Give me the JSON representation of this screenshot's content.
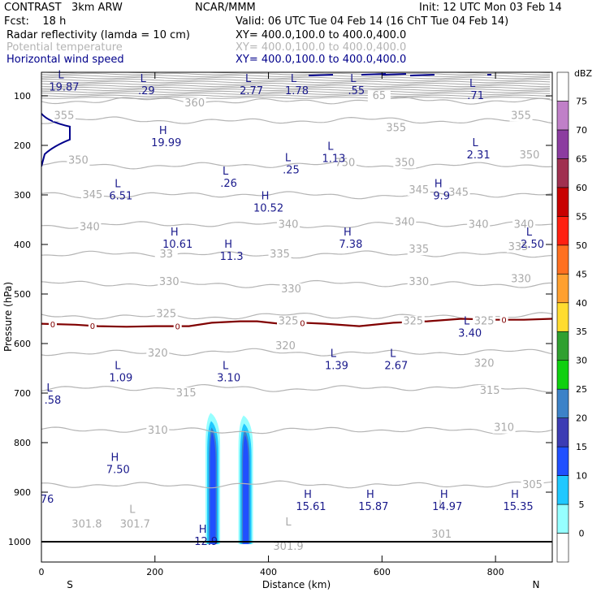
{
  "header": {
    "model": "CONTRAST   3km ARW",
    "center": "NCAR/MMM",
    "init": "Init: 12 UTC Mon 03 Feb 14",
    "fcst": "Fcst:    18 h",
    "valid": "Valid: 06 UTC Tue 04 Feb 14 (16 ChT Tue 04 Feb 14)",
    "fields": [
      {
        "name": "Radar reflectivity (lamda = 10 cm)",
        "xy": "XY= 400.0,100.0 to 400.0,400.0",
        "color": "#000000"
      },
      {
        "name": "Potential temperature",
        "xy": "XY= 400.0,100.0 to 400.0,400.0",
        "color": "#b4b4b4"
      },
      {
        "name": "Horizontal wind speed",
        "xy": "XY= 400.0,100.0 to 400.0,400.0",
        "color": "#00008b"
      }
    ]
  },
  "chart_data": {
    "type": "cross-section",
    "xlabel": "Distance (km)",
    "ylabel": "Pressure (hPa)",
    "xlim": [
      0,
      900
    ],
    "ylim_hpa": [
      1000,
      50
    ],
    "x_ticks": [
      0,
      200,
      400,
      600,
      800
    ],
    "y_ticks": [
      100,
      200,
      300,
      400,
      500,
      600,
      700,
      800,
      900,
      1000
    ],
    "end_labels": {
      "left": "S",
      "right": "N"
    },
    "theta_contours": [
      {
        "value": 360,
        "p": 110
      },
      {
        "value": 355,
        "p": 150
      },
      {
        "value": 350,
        "p": 240
      },
      {
        "value": 345,
        "p": 300
      },
      {
        "value": 340,
        "p": 360
      },
      {
        "value": 335,
        "p": 420
      },
      {
        "value": 330,
        "p": 480
      },
      {
        "value": 325,
        "p": 545
      },
      {
        "value": 320,
        "p": 618
      },
      {
        "value": 315,
        "p": 690
      },
      {
        "value": 310,
        "p": 775
      },
      {
        "value": 305,
        "p": 885
      }
    ],
    "theta_labels": [
      {
        "text": "360",
        "x": 270,
        "p": 115
      },
      {
        "text": "65",
        "x": 595,
        "p": 100
      },
      {
        "text": "355",
        "x": 40,
        "p": 140
      },
      {
        "text": "355",
        "x": 625,
        "p": 165
      },
      {
        "text": "355",
        "x": 845,
        "p": 140
      },
      {
        "text": "350",
        "x": 65,
        "p": 230
      },
      {
        "text": "750",
        "x": 535,
        "p": 235
      },
      {
        "text": "350",
        "x": 640,
        "p": 235
      },
      {
        "text": "350",
        "x": 860,
        "p": 220
      },
      {
        "text": "345",
        "x": 90,
        "p": 300
      },
      {
        "text": "345",
        "x": 665,
        "p": 290
      },
      {
        "text": "345",
        "x": 735,
        "p": 295
      },
      {
        "text": "340",
        "x": 85,
        "p": 365
      },
      {
        "text": "340",
        "x": 435,
        "p": 360
      },
      {
        "text": "340",
        "x": 640,
        "p": 355
      },
      {
        "text": "340",
        "x": 770,
        "p": 360
      },
      {
        "text": "340",
        "x": 850,
        "p": 360
      },
      {
        "text": "33",
        "x": 220,
        "p": 420
      },
      {
        "text": "335",
        "x": 420,
        "p": 420
      },
      {
        "text": "335",
        "x": 665,
        "p": 410
      },
      {
        "text": "335",
        "x": 840,
        "p": 405
      },
      {
        "text": "330",
        "x": 225,
        "p": 475
      },
      {
        "text": "330",
        "x": 440,
        "p": 490
      },
      {
        "text": "330",
        "x": 665,
        "p": 475
      },
      {
        "text": "330",
        "x": 845,
        "p": 470
      },
      {
        "text": "325",
        "x": 220,
        "p": 540
      },
      {
        "text": "325",
        "x": 435,
        "p": 555
      },
      {
        "text": "325",
        "x": 655,
        "p": 555
      },
      {
        "text": "325",
        "x": 780,
        "p": 555
      },
      {
        "text": "320",
        "x": 205,
        "p": 620
      },
      {
        "text": "320",
        "x": 430,
        "p": 605
      },
      {
        "text": "320",
        "x": 780,
        "p": 640
      },
      {
        "text": "315",
        "x": 255,
        "p": 700
      },
      {
        "text": "315",
        "x": 790,
        "p": 695
      },
      {
        "text": "310",
        "x": 205,
        "p": 775
      },
      {
        "text": "310",
        "x": 815,
        "p": 770
      },
      {
        "text": "305",
        "x": 865,
        "p": 885
      },
      {
        "text": "301.8",
        "x": 80,
        "p": 965
      },
      {
        "text": "301.7",
        "x": 165,
        "p": 965
      },
      {
        "text": "301.9",
        "x": 435,
        "p": 1010
      },
      {
        "text": "301",
        "x": 705,
        "p": 985
      }
    ],
    "theta_L": [
      {
        "x": 160,
        "p": 965
      },
      {
        "x": 435,
        "p": 990
      },
      {
        "x": 705,
        "p": 955
      }
    ],
    "wind_extrema": [
      {
        "kind": "L",
        "value": "19.87",
        "x": 40,
        "p": 68
      },
      {
        "kind": "L",
        "value": ".29",
        "x": 185,
        "p": 75
      },
      {
        "kind": "L",
        "value": "2.77",
        "x": 370,
        "p": 75
      },
      {
        "kind": "L",
        "value": "1.78",
        "x": 450,
        "p": 75
      },
      {
        "kind": "L",
        "value": ".55",
        "x": 555,
        "p": 75
      },
      {
        "kind": "L",
        "value": ".71",
        "x": 765,
        "p": 85
      },
      {
        "kind": "H",
        "value": "19.99",
        "x": 220,
        "p": 180
      },
      {
        "kind": "L",
        "value": "1.13",
        "x": 515,
        "p": 212
      },
      {
        "kind": "L",
        "value": ".25",
        "x": 440,
        "p": 235
      },
      {
        "kind": "L",
        "value": "2.31",
        "x": 770,
        "p": 205
      },
      {
        "kind": "L",
        "value": ".26",
        "x": 330,
        "p": 262
      },
      {
        "kind": "L",
        "value": "6.51",
        "x": 140,
        "p": 288
      },
      {
        "kind": "H",
        "value": "9.9",
        "x": 705,
        "p": 288
      },
      {
        "kind": "H",
        "value": "10.52",
        "x": 400,
        "p": 312
      },
      {
        "kind": "H",
        "value": "10.61",
        "x": 240,
        "p": 385
      },
      {
        "kind": "H",
        "value": "7.38",
        "x": 545,
        "p": 385
      },
      {
        "kind": "L",
        "value": "2.50",
        "x": 865,
        "p": 385
      },
      {
        "kind": "H",
        "value": "11.3",
        "x": 335,
        "p": 410
      },
      {
        "kind": "L",
        "value": "3.40",
        "x": 755,
        "p": 565
      },
      {
        "kind": "L",
        "value": "1.39",
        "x": 520,
        "p": 630
      },
      {
        "kind": "L",
        "value": "2.67",
        "x": 625,
        "p": 630
      },
      {
        "kind": "L",
        "value": "1.09",
        "x": 140,
        "p": 655
      },
      {
        "kind": "L",
        "value": "3.10",
        "x": 330,
        "p": 655
      },
      {
        "kind": "L",
        "value": ".58",
        "x": 20,
        "p": 700
      },
      {
        "kind": "H",
        "value": "7.50",
        "x": 135,
        "p": 840
      },
      {
        "kind": "H",
        "value": "15.61",
        "x": 475,
        "p": 915
      },
      {
        "kind": "H",
        "value": "15.87",
        "x": 585,
        "p": 915
      },
      {
        "kind": "H",
        "value": "14.97",
        "x": 715,
        "p": 915
      },
      {
        "kind": "H",
        "value": "15.35",
        "x": 840,
        "p": 915
      },
      {
        "kind": "H",
        "value": "12.9",
        "x": 290,
        "p": 985
      },
      {
        "kind": "",
        "value": "76",
        "x": 10,
        "p": 900
      }
    ],
    "reflectivity_zero_line": {
      "value": "0",
      "points": [
        [
          0,
          560
        ],
        [
          60,
          562
        ],
        [
          100,
          565
        ],
        [
          150,
          566
        ],
        [
          200,
          565
        ],
        [
          260,
          565
        ],
        [
          300,
          558
        ],
        [
          350,
          555
        ],
        [
          380,
          555
        ],
        [
          420,
          560
        ],
        [
          460,
          558
        ],
        [
          500,
          560
        ],
        [
          560,
          565
        ],
        [
          620,
          558
        ],
        [
          680,
          555
        ],
        [
          740,
          550
        ],
        [
          800,
          552
        ],
        [
          850,
          552
        ],
        [
          900,
          550
        ]
      ],
      "label_x": [
        20,
        90,
        240,
        460,
        815
      ]
    },
    "reflectivity_cells": [
      {
        "x_center": 302,
        "p_top": 740,
        "p_bottom": 1005,
        "peak_dbz": 20
      },
      {
        "x_center": 360,
        "p_top": 745,
        "p_bottom": 1005,
        "peak_dbz": 20
      }
    ],
    "colorbar": {
      "unit": "dBZ",
      "levels": [
        "0",
        "5",
        "10",
        "15",
        "20",
        "25",
        "30",
        "35",
        "40",
        "45",
        "50",
        "55",
        "60",
        "65",
        "70",
        "75"
      ],
      "colors": [
        "#ffffff",
        "#96ffff",
        "#20c8ff",
        "#2050ff",
        "#3c3cb4",
        "#3c82c8",
        "#10d010",
        "#30a030",
        "#ffdc30",
        "#ffa030",
        "#ff7020",
        "#ff2010",
        "#c80000",
        "#a03050",
        "#8c3ca0",
        "#c080c8",
        "#ffffff"
      ]
    },
    "jet_core": {
      "value": "19.99",
      "x": 0,
      "p_center": 185
    }
  }
}
